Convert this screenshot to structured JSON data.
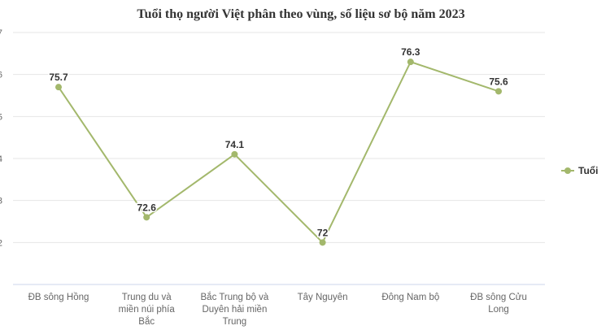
{
  "chart_data": {
    "type": "line",
    "title": "Tuổi thọ người Việt phân theo vùng, số liệu sơ bộ năm 2023",
    "categories": [
      [
        "ĐB sông Hồng"
      ],
      [
        "Trung du và",
        "miền núi phía",
        "Bắc"
      ],
      [
        "Bắc Trung bộ và",
        "Duyên hải miền",
        "Trung"
      ],
      [
        "Tây Nguyên"
      ],
      [
        "Đông Nam bộ"
      ],
      [
        "ĐB sông Cửu",
        "Long"
      ]
    ],
    "series": [
      {
        "name": "Tuổi",
        "values": [
          75.7,
          72.6,
          74.1,
          72,
          76.3,
          75.6
        ],
        "color": "#a3b86c"
      }
    ],
    "yticks": [
      72,
      73,
      74,
      75,
      76,
      77
    ],
    "ylim": [
      71,
      77
    ],
    "grid": true,
    "legend": "right",
    "xlabel": "",
    "ylabel": ""
  }
}
